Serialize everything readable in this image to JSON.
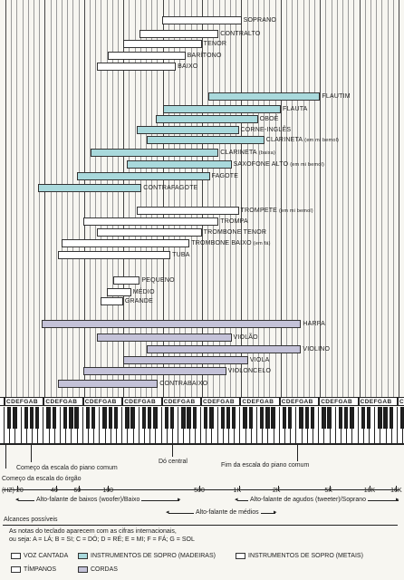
{
  "colors": {
    "voice": "#ffffff",
    "woodwind": "#a9d9dc",
    "brass": "#ffffff",
    "timpani": "#ffffff",
    "strings": "#c4c2d8"
  },
  "freq_labels": {
    "hz": "(HZ) 20",
    "f40": "40",
    "f60": "60",
    "f100": "100",
    "f500": "500",
    "f1k": "1K",
    "f2k": "2K",
    "f5k": "5K",
    "f10k": "10K",
    "f16k": "16K"
  },
  "instruments": [
    {
      "name": "SOPRANO",
      "category": "voice",
      "low_hz": 260,
      "high_hz": 1050
    },
    {
      "name": "CONTRALTO",
      "category": "voice",
      "low_hz": 175,
      "high_hz": 700
    },
    {
      "name": "TENOR",
      "category": "voice",
      "low_hz": 130,
      "high_hz": 520
    },
    {
      "name": "BARÍTONO",
      "category": "voice",
      "low_hz": 100,
      "high_hz": 390
    },
    {
      "name": "BAIXO",
      "category": "voice",
      "low_hz": 82,
      "high_hz": 330
    },
    {
      "name": "FLAUTIM",
      "category": "woodwind",
      "low_hz": 587,
      "high_hz": 4200
    },
    {
      "name": "FLAUTA",
      "category": "woodwind",
      "low_hz": 262,
      "high_hz": 2100
    },
    {
      "name": "OBOÉ",
      "category": "woodwind",
      "low_hz": 233,
      "high_hz": 1400
    },
    {
      "name": "CORNE-INGLÊS",
      "category": "woodwind",
      "low_hz": 165,
      "high_hz": 1000
    },
    {
      "name": "CLARINETA",
      "sub": "(em mi bemol)",
      "category": "woodwind",
      "low_hz": 196,
      "high_hz": 1568
    },
    {
      "name": "CLARINETA",
      "sub": "(baixa)",
      "category": "woodwind",
      "low_hz": 73,
      "high_hz": 700
    },
    {
      "name": "SAXOFONE ALTO",
      "sub": "(em mi bemol)",
      "category": "woodwind",
      "low_hz": 139,
      "high_hz": 880
    },
    {
      "name": "FAGOTE",
      "category": "woodwind",
      "low_hz": 58,
      "high_hz": 600
    },
    {
      "name": "CONTRAFAGOTE",
      "category": "woodwind",
      "low_hz": 29,
      "high_hz": 180
    },
    {
      "name": "TROMPETE",
      "sub": "(em mi bemol)",
      "category": "brass",
      "low_hz": 165,
      "high_hz": 1000
    },
    {
      "name": "TROMPA",
      "category": "brass",
      "low_hz": 65,
      "high_hz": 700
    },
    {
      "name": "TROMBONE TENOR",
      "category": "brass",
      "low_hz": 82,
      "high_hz": 520
    },
    {
      "name": "TROMBONE BAIXO",
      "sub": "(em fá)",
      "category": "brass",
      "low_hz": 44,
      "high_hz": 420
    },
    {
      "name": "TUBA",
      "category": "brass",
      "low_hz": 41,
      "high_hz": 300
    },
    {
      "name": "PEQUENO",
      "category": "timpani",
      "low_hz": 110,
      "high_hz": 175
    },
    {
      "name": "MÉDIO",
      "category": "timpani",
      "low_hz": 98,
      "high_hz": 150
    },
    {
      "name": "GRANDE",
      "category": "timpani",
      "low_hz": 87,
      "high_hz": 130
    },
    {
      "name": "HARPA",
      "category": "strings",
      "low_hz": 31,
      "high_hz": 3000
    },
    {
      "name": "VIOLÃO",
      "category": "strings",
      "low_hz": 82,
      "high_hz": 880
    },
    {
      "name": "VIOLINO",
      "category": "strings",
      "low_hz": 196,
      "high_hz": 3000
    },
    {
      "name": "VIOLA",
      "category": "strings",
      "low_hz": 131,
      "high_hz": 1180
    },
    {
      "name": "VIOLONCELO",
      "category": "strings",
      "low_hz": 65,
      "high_hz": 800
    },
    {
      "name": "CONTRABAIXO",
      "category": "strings",
      "low_hz": 41,
      "high_hz": 240
    }
  ],
  "note_octave": "CDEFGAB",
  "annotations": {
    "organ_start": "Começo da escala do órgão",
    "piano_start": "Começo da escala do piano comum",
    "middle_c": "Dó central",
    "piano_end": "Fim da escala do piano comum"
  },
  "speakers": {
    "woofer": "Alto-falante de baixos (woofer)/Baixo",
    "tweeter": "Alto-falante de agudos (tweeter)/Soprano",
    "midrange": "Alto-falante de médios",
    "possible": "Alcances possíveis"
  },
  "footnote": {
    "line1": "As notas do teclado aparecem com as cifras internacionais,",
    "line2": "ou seja: A = LÁ; B = SI; C = DÓ; D = RÉ; E = MI; F = FÁ; G = SOL"
  },
  "legend": [
    {
      "label": "VOZ CANTADA",
      "category": "voice"
    },
    {
      "label": "INSTRUMENTOS DE SOPRO (MADEIRAS)",
      "category": "woodwind"
    },
    {
      "label": "INSTRUMENTOS DE SOPRO (METAIS)",
      "category": "brass"
    },
    {
      "label": "TÍMPANOS",
      "category": "timpani"
    },
    {
      "label": "CORDAS",
      "category": "strings"
    }
  ]
}
